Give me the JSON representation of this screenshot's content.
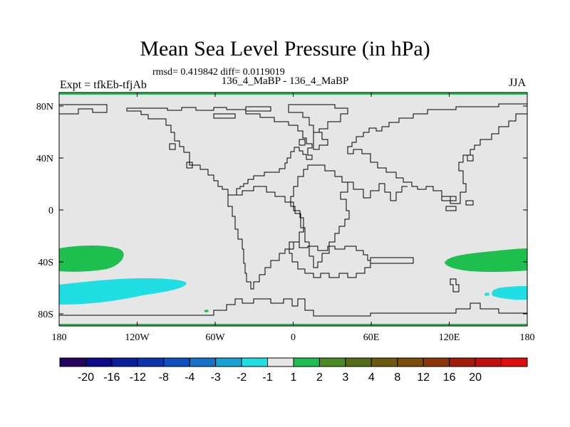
{
  "header": {
    "title": "Mean Sea Level Pressure (in hPa)",
    "stats": "rmsd= 0.419842  diff= 0.0119019",
    "experiment": "Expt = tfkEb-tfjAb",
    "runs": "136_4_MaBP - 136_4_MaBP",
    "season": "JJA"
  },
  "map": {
    "background_color": "#e6e6e6",
    "x_tick_labels": [
      "180",
      "120W",
      "60W",
      "0",
      "60E",
      "120E",
      "180"
    ],
    "y_tick_labels": [
      "80N",
      "40N",
      "0",
      "40S",
      "80S"
    ],
    "anomaly_regions": [
      {
        "name": "south-pacific-west-positive",
        "level": "1 to 2",
        "color": "#1fbf4f"
      },
      {
        "name": "south-pacific-west-negative",
        "level": "-2 to -1",
        "color": "#1fdfe3"
      },
      {
        "name": "south-pacific-east-positive",
        "level": "1 to 2",
        "color": "#1fbf4f"
      },
      {
        "name": "south-pacific-east-negative",
        "level": "-2 to -1",
        "color": "#1fdfe3"
      },
      {
        "name": "antarctic-small-positive",
        "level": "1 to 2",
        "color": "#1fbf4f"
      }
    ]
  },
  "colorbar": {
    "colors": [
      "#24045e",
      "#0d0a8a",
      "#0b1ea0",
      "#0a35ad",
      "#0b4fc0",
      "#1572c7",
      "#19a2d4",
      "#1fdfe3",
      "#e6e6e6",
      "#1fbf4f",
      "#4a8a25",
      "#556b16",
      "#6b5a0d",
      "#7b4c09",
      "#8c3708",
      "#a21c08",
      "#c0100c",
      "#df0d0d"
    ],
    "labels": [
      "-20",
      "-16",
      "-12",
      "-8",
      "-4",
      "-3",
      "-2",
      "-1",
      "1",
      "2",
      "3",
      "4",
      "8",
      "12",
      "16",
      "20"
    ]
  }
}
